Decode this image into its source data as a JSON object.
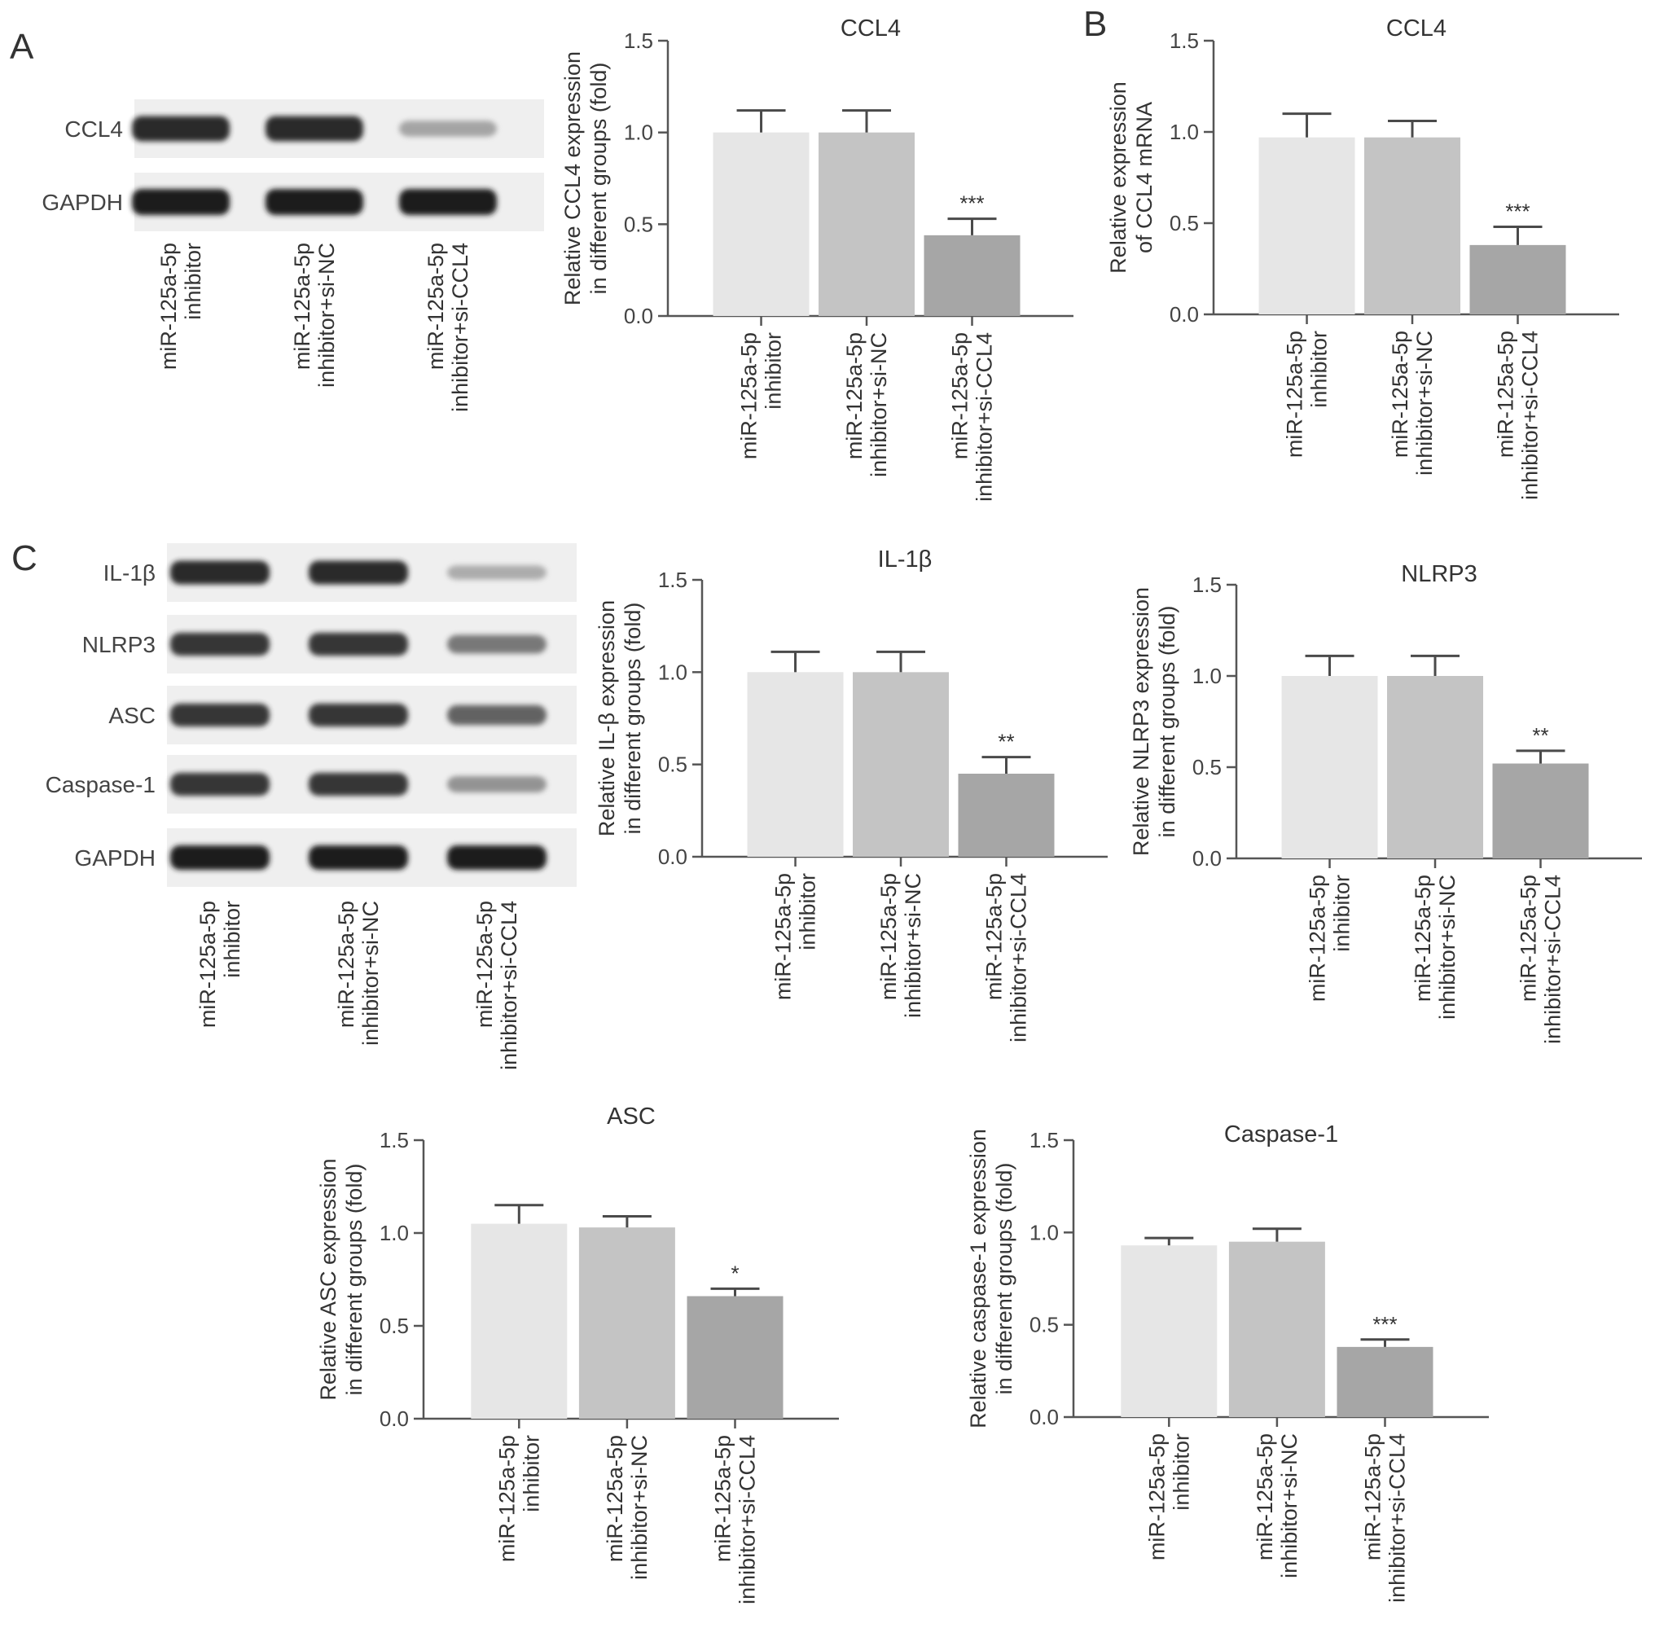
{
  "panel_labels": [
    "A",
    "B",
    "C"
  ],
  "blot_a": {
    "rows": [
      "CCL4",
      "GAPDH"
    ],
    "lanes": [
      [
        "miR-125a-5p",
        "inhibitor"
      ],
      [
        "miR-125a-5p",
        "inhibitor+si-NC"
      ],
      [
        "miR-125a-5p",
        "inhibitor+si-CCL4"
      ]
    ],
    "band_intensity": [
      [
        0.95,
        0.95,
        0.35
      ],
      [
        1.0,
        1.0,
        1.0
      ]
    ]
  },
  "blot_c": {
    "rows": [
      "IL-1β",
      "NLRP3",
      "ASC",
      "Caspase-1",
      "GAPDH"
    ],
    "lanes": [
      [
        "miR-125a-5p",
        "inhibitor"
      ],
      [
        "miR-125a-5p",
        "inhibitor+si-NC"
      ],
      [
        "miR-125a-5p",
        "inhibitor+si-CCL4"
      ]
    ],
    "band_intensity": [
      [
        0.95,
        0.95,
        0.3
      ],
      [
        0.9,
        0.9,
        0.6
      ],
      [
        0.9,
        0.9,
        0.7
      ],
      [
        0.9,
        0.9,
        0.45
      ],
      [
        1.0,
        1.0,
        1.0
      ]
    ]
  },
  "bar_colors": [
    "#e6e6e6",
    "#c4c4c4",
    "#a6a6a6"
  ],
  "chart_data": [
    {
      "id": "a-ccl4",
      "type": "bar",
      "title": "CCL4",
      "ylabel": [
        "Relative CCL4 expression",
        "in different groups (fold)"
      ],
      "categories": [
        [
          "miR-125a-5p",
          "inhibitor"
        ],
        [
          "miR-125a-5p",
          "inhibitor+si-NC"
        ],
        [
          "miR-125a-5p",
          "inhibitor+si-CCL4"
        ]
      ],
      "values": [
        1.0,
        1.0,
        0.44
      ],
      "errors": [
        0.12,
        0.12,
        0.09
      ],
      "significance": [
        "",
        "",
        "***"
      ],
      "ylim": [
        0,
        1.5
      ],
      "yticks": [
        "0.0",
        "0.5",
        "1.0",
        "1.5"
      ]
    },
    {
      "id": "b-ccl4",
      "type": "bar",
      "title": "CCL4",
      "ylabel": [
        "Relative expression",
        "of CCL4 mRNA"
      ],
      "categories": [
        [
          "miR-125a-5p",
          "inhibitor"
        ],
        [
          "miR-125a-5p",
          "inhibitor+si-NC"
        ],
        [
          "miR-125a-5p",
          "inhibitor+si-CCL4"
        ]
      ],
      "values": [
        0.97,
        0.97,
        0.38
      ],
      "errors": [
        0.13,
        0.09,
        0.1
      ],
      "significance": [
        "",
        "",
        "***"
      ],
      "ylim": [
        0,
        1.5
      ],
      "yticks": [
        "0.0",
        "0.5",
        "1.0",
        "1.5"
      ]
    },
    {
      "id": "c-il1b",
      "type": "bar",
      "title": "IL-1β",
      "ylabel": [
        "Relative IL-β expression",
        "in different groups (fold)"
      ],
      "categories": [
        [
          "miR-125a-5p",
          "inhibitor"
        ],
        [
          "miR-125a-5p",
          "inhibitor+si-NC"
        ],
        [
          "miR-125a-5p",
          "inhibitor+si-CCL4"
        ]
      ],
      "values": [
        1.0,
        1.0,
        0.45
      ],
      "errors": [
        0.11,
        0.11,
        0.09
      ],
      "significance": [
        "",
        "",
        "**"
      ],
      "ylim": [
        0,
        1.5
      ],
      "yticks": [
        "0.0",
        "0.5",
        "1.0",
        "1.5"
      ]
    },
    {
      "id": "c-nlrp3",
      "type": "bar",
      "title": "NLRP3",
      "ylabel": [
        "Relative NLRP3 expression",
        "in different groups (fold)"
      ],
      "categories": [
        [
          "miR-125a-5p",
          "inhibitor"
        ],
        [
          "miR-125a-5p",
          "inhibitor+si-NC"
        ],
        [
          "miR-125a-5p",
          "inhibitor+si-CCL4"
        ]
      ],
      "values": [
        1.0,
        1.0,
        0.52
      ],
      "errors": [
        0.11,
        0.11,
        0.07
      ],
      "significance": [
        "",
        "",
        "**"
      ],
      "ylim": [
        0,
        1.5
      ],
      "yticks": [
        "0.0",
        "0.5",
        "1.0",
        "1.5"
      ]
    },
    {
      "id": "c-asc",
      "type": "bar",
      "title": "ASC",
      "ylabel": [
        "Relative ASC expression",
        "in different groups (fold)"
      ],
      "categories": [
        [
          "miR-125a-5p",
          "inhibitor"
        ],
        [
          "miR-125a-5p",
          "inhibitor+si-NC"
        ],
        [
          "miR-125a-5p",
          "inhibitor+si-CCL4"
        ]
      ],
      "values": [
        1.05,
        1.03,
        0.66
      ],
      "errors": [
        0.1,
        0.06,
        0.04
      ],
      "significance": [
        "",
        "",
        "*"
      ],
      "ylim": [
        0,
        1.5
      ],
      "yticks": [
        "0.0",
        "0.5",
        "1.0",
        "1.5"
      ]
    },
    {
      "id": "c-casp1",
      "type": "bar",
      "title": "Caspase-1",
      "ylabel": [
        "Relative caspase-1 expression",
        "in different groups (fold)"
      ],
      "categories": [
        [
          "miR-125a-5p",
          "inhibitor"
        ],
        [
          "miR-125a-5p",
          "inhibitor+si-NC"
        ],
        [
          "miR-125a-5p",
          "inhibitor+si-CCL4"
        ]
      ],
      "values": [
        0.93,
        0.95,
        0.38
      ],
      "errors": [
        0.04,
        0.07,
        0.04
      ],
      "significance": [
        "",
        "",
        "***"
      ],
      "ylim": [
        0,
        1.5
      ],
      "yticks": [
        "0.0",
        "0.5",
        "1.0",
        "1.5"
      ]
    }
  ]
}
